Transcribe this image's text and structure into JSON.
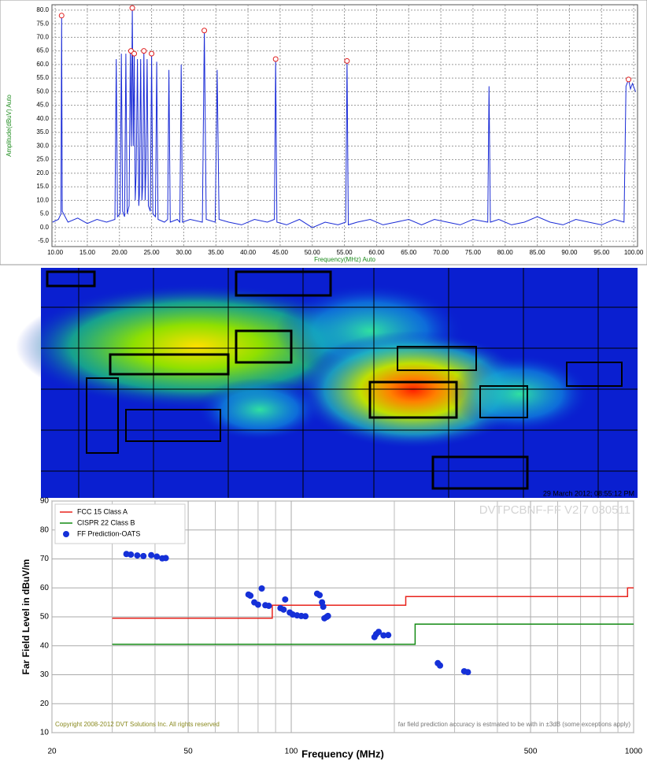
{
  "chart_data": [
    {
      "type": "line",
      "xlabel": "Frequency(MHz) Auto",
      "ylabel": "Amplitude(dBuV) Auto",
      "xlim": [
        9.5,
        100.6
      ],
      "ylim": [
        -7,
        82
      ],
      "xticks": [
        {
          "value": 10,
          "label": "10.00"
        },
        {
          "value": 15,
          "label": "15.00"
        },
        {
          "value": 20,
          "label": "20.00"
        },
        {
          "value": 25,
          "label": "25.00"
        },
        {
          "value": 30,
          "label": "30.00"
        },
        {
          "value": 35,
          "label": "35.00"
        },
        {
          "value": 40,
          "label": "40.00"
        },
        {
          "value": 45,
          "label": "45.00"
        },
        {
          "value": 50,
          "label": "50.00"
        },
        {
          "value": 55,
          "label": "55.00"
        },
        {
          "value": 60,
          "label": "60.00"
        },
        {
          "value": 65,
          "label": "65.00"
        },
        {
          "value": 70,
          "label": "70.00"
        },
        {
          "value": 75,
          "label": "75.00"
        },
        {
          "value": 80,
          "label": "80.00"
        },
        {
          "value": 85,
          "label": "85.00"
        },
        {
          "value": 90,
          "label": "90.00"
        },
        {
          "value": 95,
          "label": "95.00"
        },
        {
          "value": 100,
          "label": "100.00"
        }
      ],
      "yticks": [
        {
          "value": -5,
          "label": "-5.0"
        },
        {
          "value": 0,
          "label": "0.0"
        },
        {
          "value": 5,
          "label": "5.0"
        },
        {
          "value": 10,
          "label": "10.0"
        },
        {
          "value": 15,
          "label": "15.0"
        },
        {
          "value": 20,
          "label": "20.0"
        },
        {
          "value": 25,
          "label": "25.0"
        },
        {
          "value": 30,
          "label": "30.0"
        },
        {
          "value": 35,
          "label": "35.0"
        },
        {
          "value": 40,
          "label": "40.0"
        },
        {
          "value": 45,
          "label": "45.0"
        },
        {
          "value": 50,
          "label": "50.0"
        },
        {
          "value": 55,
          "label": "55.0"
        },
        {
          "value": 60,
          "label": "60.0"
        },
        {
          "value": 65,
          "label": "65.0"
        },
        {
          "value": 70,
          "label": "70.0"
        },
        {
          "value": 75,
          "label": "75.0"
        },
        {
          "value": 80,
          "label": "80.0"
        }
      ],
      "grid": true,
      "series": [
        {
          "type": "line",
          "color": "#1a2bd6",
          "x": [
            9.6,
            10.5,
            10.9,
            11.0,
            11.1,
            12,
            13.5,
            15,
            16.5,
            18,
            19.3,
            19.5,
            19.7,
            20.1,
            20.3,
            20.5,
            20.8,
            21.0,
            21.2,
            21.5,
            21.7,
            21.85,
            22.0,
            22.15,
            22.3,
            22.45,
            22.6,
            22.8,
            23.0,
            23.1,
            23.3,
            23.5,
            23.6,
            23.8,
            24.0,
            24.1,
            24.3,
            24.5,
            24.8,
            25.0,
            25.2,
            25.6,
            25.8,
            26.0,
            27.0,
            27.5,
            27.7,
            27.9,
            29.0,
            29.4,
            29.6,
            29.8,
            31,
            32.9,
            33.2,
            33.5,
            34.9,
            35.2,
            35.5,
            37,
            39,
            41,
            43,
            44.1,
            44.3,
            44.5,
            46,
            48,
            50,
            52,
            54,
            55.2,
            55.4,
            55.6,
            57,
            59,
            61,
            63,
            65,
            67,
            69,
            71,
            73,
            75,
            77.3,
            77.5,
            77.7,
            79,
            81,
            83,
            85,
            87,
            89,
            91,
            93,
            95,
            97,
            98.5,
            98.8,
            99.2,
            99.5,
            99.8,
            100.3
          ],
          "values": [
            2,
            3,
            5,
            78,
            6,
            2,
            3.5,
            1.5,
            3,
            2,
            3,
            62,
            4,
            5,
            64,
            6,
            4,
            64,
            5,
            8,
            65,
            30,
            80.8,
            30,
            64,
            10,
            20,
            62,
            8,
            12,
            62,
            10,
            15,
            65,
            10,
            20,
            62,
            8,
            6,
            64,
            5,
            4,
            61,
            3,
            2,
            3,
            58,
            2,
            3,
            2,
            60,
            2,
            3,
            2,
            72.5,
            3,
            2,
            58,
            3,
            2,
            1,
            3,
            2,
            3,
            62,
            2,
            1,
            3,
            0,
            2,
            1,
            2,
            61.3,
            1,
            2,
            3,
            1,
            2,
            3,
            1,
            3,
            2,
            1,
            3,
            2,
            52,
            2,
            3,
            1,
            2,
            4,
            2,
            1,
            3,
            2,
            1,
            3,
            2,
            52,
            54.5,
            51,
            53,
            50
          ]
        },
        {
          "type": "scatter",
          "color": "#e02020",
          "x": [
            11,
            22,
            21.8,
            22.3,
            23.8,
            25,
            33.2,
            44.3,
            55.4,
            99.2
          ],
          "values": [
            78,
            80.8,
            65,
            64,
            65,
            64,
            72.5,
            62,
            61.3,
            54.5
          ]
        }
      ]
    },
    {
      "type": "line",
      "title": "DVTPCBNF-FF V2.7 030511",
      "xlabel": "Frequency (MHz)",
      "ylabel": "Far Field Level in dBuV/m",
      "notes": [
        "Copyright 2008-2012 DVT Solutions Inc. All rights reserved",
        "far field prediction accuracy is estmated to be with in ±3dB (some exceptions apply)"
      ],
      "xlog": true,
      "xlim": [
        20,
        1000
      ],
      "ylim": [
        10,
        90
      ],
      "xticks": [
        20,
        50,
        100,
        500,
        1000
      ],
      "xminor": [
        30,
        40,
        60,
        70,
        80,
        90,
        200,
        300,
        400,
        600,
        700,
        800,
        900
      ],
      "yticks": [
        10,
        20,
        30,
        40,
        50,
        60,
        70,
        80,
        90
      ],
      "grid": true,
      "legend": "upper left",
      "series": [
        {
          "name": "FCC 15 Class A",
          "type": "line",
          "color": "#e8231c",
          "x": [
            30,
            88,
            88,
            216,
            216,
            960,
            960,
            1000
          ],
          "values": [
            49.5,
            49.5,
            54,
            54,
            57,
            57,
            60,
            60
          ]
        },
        {
          "name": "CISPR 22 Class B",
          "type": "line",
          "color": "#138a13",
          "x": [
            30,
            230,
            230,
            1000
          ],
          "values": [
            40.5,
            40.5,
            47.5,
            47.5
          ]
        },
        {
          "name": "FF Prediction-OATS",
          "type": "scatter",
          "color": "#1530d8",
          "x": [
            33,
            34,
            35.5,
            37,
            39,
            40.5,
            42,
            43,
            75,
            76,
            78,
            80,
            82,
            84,
            86,
            93,
            95,
            96,
            99,
            101,
            104,
            107,
            110,
            119,
            121,
            123,
            124,
            125,
            127,
            128,
            175,
            177,
            180,
            186,
            192,
            268,
            272,
            320,
            328
          ],
          "values": [
            71.7,
            71.5,
            71.2,
            71,
            71.3,
            70.8,
            70.2,
            70.3,
            57.7,
            57.3,
            55,
            54.2,
            59.8,
            54,
            53.8,
            53,
            52.5,
            56,
            51.5,
            50.8,
            50.5,
            50.3,
            50.2,
            58,
            57.5,
            55,
            53.5,
            49.5,
            50,
            50.3,
            43,
            44,
            44.8,
            43.6,
            43.7,
            34,
            33.2,
            31.2,
            30.9
          ]
        }
      ]
    }
  ],
  "heatmap": {
    "timestamp": "29 March 2012; 08:55:12 PM"
  }
}
